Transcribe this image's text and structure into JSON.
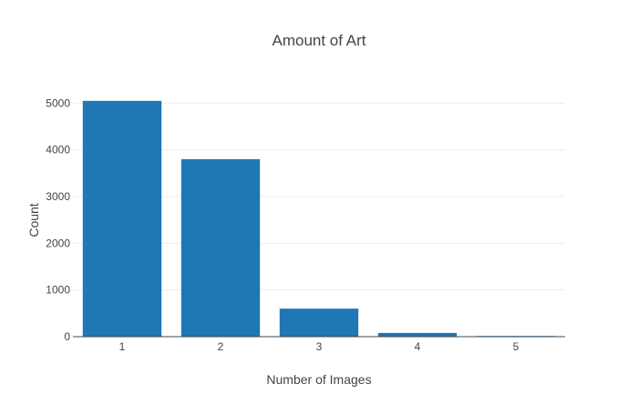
{
  "chart_data": {
    "type": "bar",
    "title": "Amount of Art",
    "xlabel": "Number of Images",
    "ylabel": "Count",
    "categories": [
      "1",
      "2",
      "3",
      "4",
      "5"
    ],
    "values": [
      5050,
      3800,
      600,
      80,
      15
    ],
    "ylim": [
      0,
      5300
    ],
    "yticks": [
      0,
      1000,
      2000,
      3000,
      4000,
      5000
    ],
    "ytick_labels": [
      "0",
      "1000",
      "2000",
      "3000",
      "4000",
      "5000"
    ],
    "bar_color": "#1f77b4",
    "grid": true,
    "legend": "none"
  }
}
